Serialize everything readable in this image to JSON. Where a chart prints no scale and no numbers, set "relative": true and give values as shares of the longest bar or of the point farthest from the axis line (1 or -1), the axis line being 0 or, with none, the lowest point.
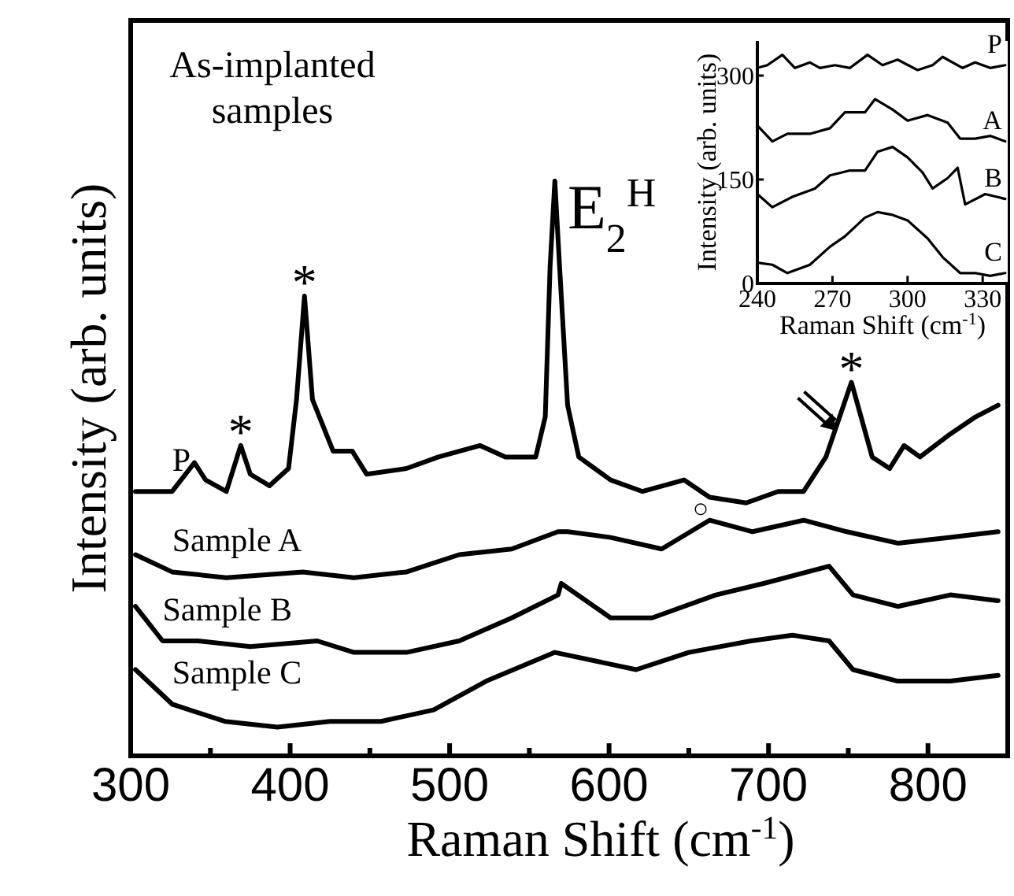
{
  "chart_data": [
    {
      "type": "line",
      "relative": true,
      "xlabel": "Raman Shift (cm$^{-1}$)",
      "ylabel": "Intensity (arb. units)",
      "xlim": [
        300,
        850
      ],
      "xticks": [
        300,
        {
          "value": 350,
          "label": null
        },
        400,
        {
          "value": 450,
          "label": null
        },
        500,
        {
          "value": 550,
          "label": null
        },
        600,
        {
          "value": 650,
          "label": null
        },
        700,
        {
          "value": 750,
          "label": null
        },
        800
      ],
      "tick_labels": "x",
      "annotations": [
        "As-implanted samples",
        {
          "text": "E$_{2}$$^{H}$",
          "x": 572,
          "y": 1.0
        },
        {
          "text": "*",
          "x": 369,
          "y": 0.54
        },
        {
          "text": "*",
          "x": 409,
          "y": 0.8
        },
        {
          "text": "*",
          "x": 752,
          "y": 0.65
        },
        "○"
      ],
      "series": [
        {
          "name": "P",
          "color": "#000000",
          "x": [
            303,
            326,
            340,
            347,
            360,
            369,
            375,
            387,
            399,
            404,
            409,
            414,
            427,
            439,
            448,
            473,
            493,
            519,
            535,
            554,
            560,
            563,
            566,
            569,
            574,
            581,
            601,
            621,
            647,
            663,
            686,
            706,
            722,
            736,
            752,
            765,
            776,
            785,
            795,
            814,
            830,
            844
          ],
          "values": [
            0.46,
            0.46,
            0.51,
            0.48,
            0.46,
            0.54,
            0.49,
            0.47,
            0.5,
            0.62,
            0.8,
            0.62,
            0.53,
            0.53,
            0.49,
            0.5,
            0.52,
            0.54,
            0.52,
            0.52,
            0.59,
            0.85,
            1.0,
            0.85,
            0.61,
            0.52,
            0.48,
            0.46,
            0.48,
            0.45,
            0.44,
            0.46,
            0.46,
            0.52,
            0.65,
            0.52,
            0.5,
            0.54,
            0.52,
            0.56,
            0.59,
            0.61
          ]
        },
        {
          "name": "Sample A",
          "color": "#000000",
          "x": [
            303,
            326,
            360,
            408,
            440,
            473,
            506,
            539,
            568,
            574,
            601,
            633,
            663,
            690,
            722,
            749,
            781,
            814,
            844
          ],
          "values": [
            0.35,
            0.32,
            0.31,
            0.32,
            0.31,
            0.32,
            0.35,
            0.36,
            0.39,
            0.39,
            0.38,
            0.36,
            0.41,
            0.39,
            0.41,
            0.39,
            0.37,
            0.38,
            0.39
          ]
        },
        {
          "name": "Sample B",
          "color": "#000000",
          "x": [
            303,
            320,
            342,
            375,
            417,
            440,
            473,
            506,
            539,
            568,
            570,
            601,
            627,
            667,
            697,
            738,
            753,
            781,
            814,
            844
          ],
          "values": [
            0.26,
            0.2,
            0.2,
            0.19,
            0.2,
            0.18,
            0.18,
            0.2,
            0.24,
            0.28,
            0.3,
            0.24,
            0.24,
            0.28,
            0.3,
            0.33,
            0.28,
            0.26,
            0.28,
            0.27
          ]
        },
        {
          "name": "Sample C",
          "color": "#000000",
          "x": [
            303,
            326,
            359,
            392,
            425,
            457,
            490,
            523,
            566,
            617,
            650,
            689,
            715,
            738,
            753,
            781,
            814,
            844
          ],
          "values": [
            0.15,
            0.09,
            0.06,
            0.05,
            0.06,
            0.06,
            0.08,
            0.13,
            0.18,
            0.15,
            0.18,
            0.2,
            0.21,
            0.2,
            0.15,
            0.13,
            0.13,
            0.14
          ]
        }
      ]
    },
    {
      "type": "line",
      "xlabel": "Raman Shift (cm$^{-1}$)",
      "ylabel": "Intensity (arb. units)",
      "xlim": [
        240,
        340
      ],
      "ylim": [
        0,
        350
      ],
      "xticks": [
        240,
        270,
        300,
        330
      ],
      "yticks": [
        0,
        150,
        300
      ],
      "series": [
        {
          "name": "P",
          "color": "#000000",
          "x": [
            240,
            244,
            250,
            255,
            261,
            265,
            271,
            277,
            284,
            290,
            296,
            304,
            310,
            314,
            322,
            327,
            333,
            339
          ],
          "values": [
            311,
            315,
            330,
            311,
            319,
            311,
            315,
            311,
            330,
            315,
            323,
            308,
            315,
            327,
            311,
            319,
            311,
            315
          ]
        },
        {
          "name": "A",
          "color": "#000000",
          "x": [
            240,
            246,
            252,
            261,
            269,
            275,
            283,
            287,
            294,
            300,
            308,
            316,
            321,
            327,
            333,
            339
          ],
          "values": [
            228,
            205,
            216,
            216,
            224,
            247,
            247,
            266,
            251,
            235,
            243,
            232,
            209,
            209,
            213,
            205
          ]
        },
        {
          "name": "B",
          "color": "#000000",
          "x": [
            240,
            246,
            254,
            263,
            269,
            277,
            283,
            288,
            294,
            300,
            306,
            310,
            316,
            320,
            323,
            331,
            339
          ],
          "values": [
            129,
            110,
            125,
            137,
            156,
            163,
            163,
            190,
            197,
            182,
            160,
            137,
            152,
            167,
            114,
            129,
            122
          ]
        },
        {
          "name": "C",
          "color": "#000000",
          "x": [
            240,
            246,
            252,
            261,
            269,
            275,
            283,
            288,
            294,
            300,
            308,
            314,
            321,
            327,
            333,
            339
          ],
          "values": [
            30,
            27,
            15,
            27,
            53,
            68,
            95,
            103,
            99,
            91,
            65,
            38,
            15,
            15,
            11,
            15
          ]
        }
      ]
    }
  ]
}
